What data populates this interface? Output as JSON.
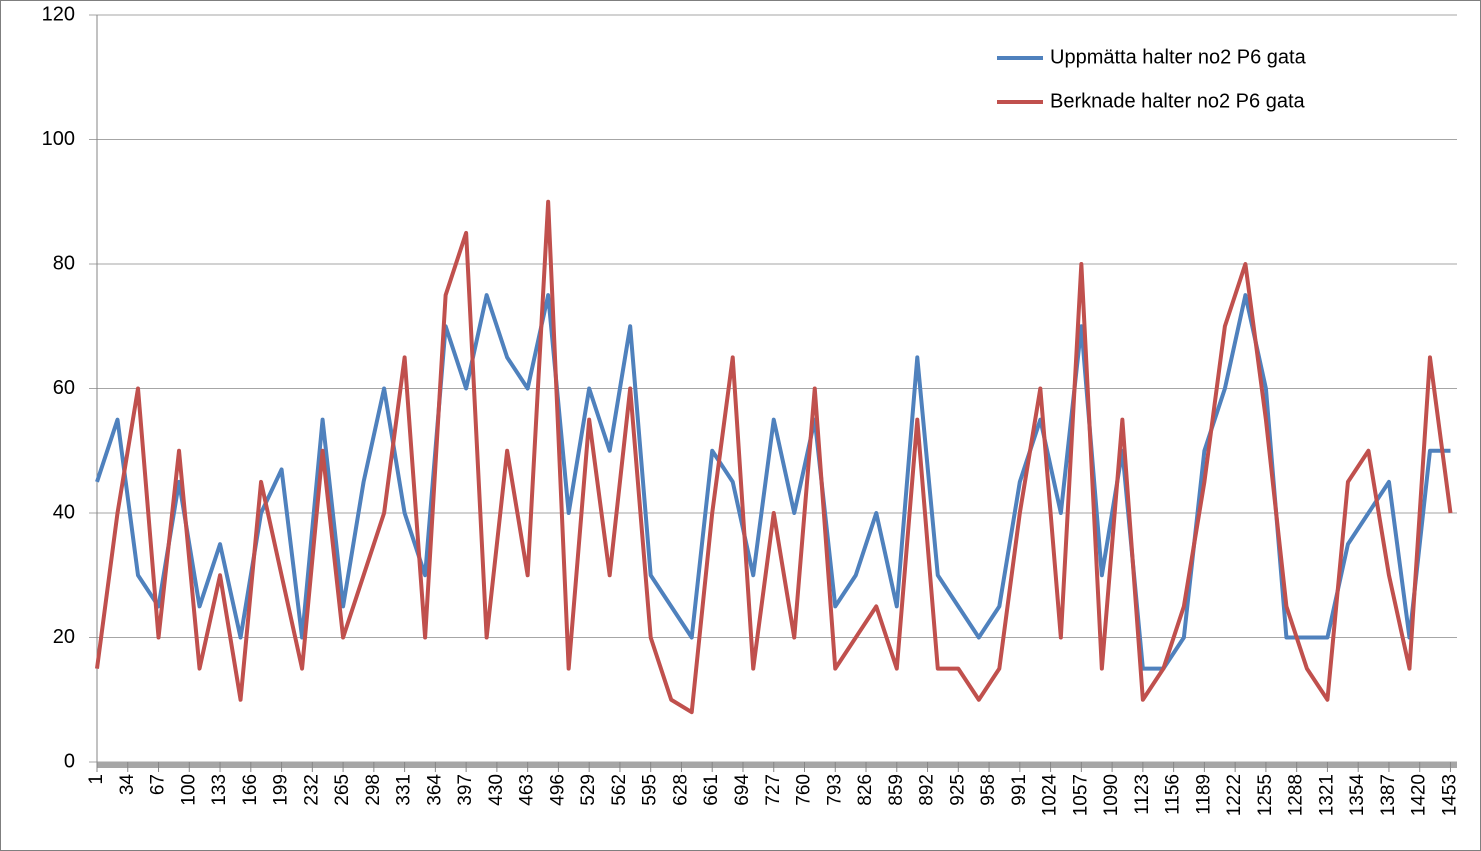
{
  "chart_data": {
    "type": "line",
    "x": [
      1,
      23,
      45,
      67,
      89,
      111,
      133,
      155,
      177,
      199,
      221,
      243,
      265,
      287,
      309,
      331,
      353,
      375,
      397,
      419,
      441,
      463,
      485,
      507,
      529,
      551,
      573,
      595,
      617,
      639,
      661,
      683,
      705,
      727,
      749,
      771,
      793,
      815,
      837,
      859,
      881,
      903,
      925,
      947,
      969,
      991,
      1013,
      1035,
      1057,
      1079,
      1101,
      1123,
      1145,
      1167,
      1189,
      1211,
      1233,
      1255,
      1277,
      1299,
      1321,
      1343,
      1365,
      1387,
      1409,
      1431,
      1453
    ],
    "series": [
      {
        "name": "Uppmätta halter no2 P6 gata",
        "color": "#4f81bd",
        "values": [
          45,
          55,
          30,
          25,
          45,
          25,
          35,
          20,
          40,
          47,
          20,
          55,
          25,
          45,
          60,
          40,
          30,
          70,
          60,
          75,
          65,
          60,
          75,
          40,
          60,
          50,
          70,
          30,
          25,
          20,
          50,
          45,
          30,
          55,
          40,
          55,
          25,
          30,
          40,
          25,
          65,
          30,
          25,
          20,
          25,
          45,
          55,
          40,
          70,
          30,
          50,
          15,
          15,
          20,
          50,
          60,
          75,
          60,
          20,
          20,
          20,
          35,
          40,
          45,
          20,
          50,
          50
        ]
      },
      {
        "name": "Berknade halter no2 P6 gata",
        "color": "#c0504d",
        "values": [
          15,
          40,
          60,
          20,
          50,
          15,
          30,
          10,
          45,
          30,
          15,
          50,
          20,
          30,
          40,
          65,
          20,
          75,
          85,
          20,
          50,
          30,
          90,
          15,
          55,
          30,
          60,
          20,
          10,
          8,
          40,
          65,
          15,
          40,
          20,
          60,
          15,
          20,
          25,
          15,
          55,
          15,
          15,
          10,
          15,
          40,
          60,
          20,
          80,
          15,
          55,
          10,
          15,
          25,
          45,
          70,
          80,
          55,
          25,
          15,
          10,
          45,
          50,
          30,
          15,
          65,
          40
        ]
      }
    ],
    "xlim": [
      1,
      1460
    ],
    "xticks": [
      1,
      34,
      67,
      100,
      133,
      166,
      199,
      232,
      265,
      298,
      331,
      364,
      397,
      430,
      463,
      496,
      529,
      562,
      595,
      628,
      661,
      694,
      727,
      760,
      793,
      826,
      859,
      892,
      925,
      958,
      991,
      1024,
      1057,
      1090,
      1123,
      1156,
      1189,
      1222,
      1255,
      1288,
      1321,
      1354,
      1387,
      1420,
      1453
    ],
    "ylim": [
      0,
      120
    ],
    "yticks": [
      0,
      20,
      40,
      60,
      80,
      100,
      120
    ],
    "grid": true,
    "legend": "top-right"
  }
}
